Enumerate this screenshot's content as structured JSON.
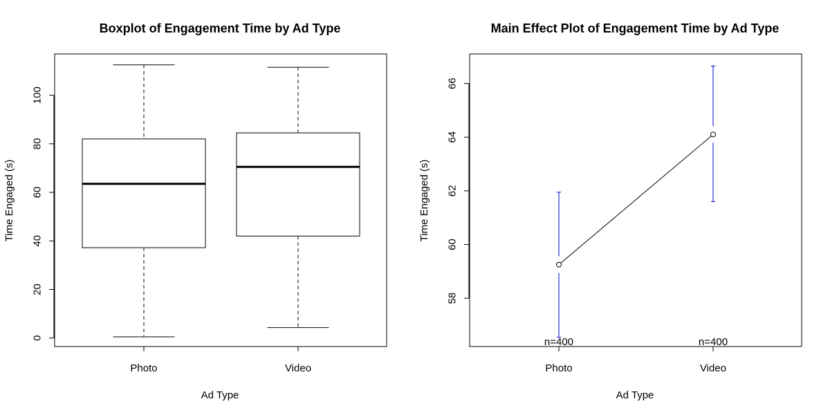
{
  "chart_data": [
    {
      "type": "boxplot",
      "title": "Boxplot of Engagement Time by Ad Type",
      "xlabel": "Ad Type",
      "ylabel": "Time Engaged (s)",
      "ylim": [
        -3.5,
        117
      ],
      "yticks": [
        "0",
        "20",
        "40",
        "60",
        "80",
        "100"
      ],
      "categories": [
        "Photo",
        "Video"
      ],
      "boxes": [
        {
          "category": "Photo",
          "min": 0.5,
          "q1": 37.2,
          "median": 63.5,
          "q3": 82,
          "max": 112.5
        },
        {
          "category": "Video",
          "min": 4.3,
          "q1": 42,
          "median": 70.5,
          "q3": 84.5,
          "max": 111.5
        }
      ],
      "grid": false
    },
    {
      "type": "line",
      "title": "Main Effect Plot of Engagement Time by Ad Type",
      "xlabel": "Ad Type",
      "ylabel": "Time Engaged (s)",
      "ylim": [
        56.2,
        67.1
      ],
      "yticks": [
        "58",
        "60",
        "62",
        "64",
        "66"
      ],
      "categories": [
        "Photo",
        "Video"
      ],
      "points": [
        {
          "category": "Photo",
          "mean": 59.25,
          "ci_low": 56.55,
          "ci_high": 61.95,
          "n_label": "n=400"
        },
        {
          "category": "Video",
          "mean": 64.1,
          "ci_low": 61.6,
          "ci_high": 66.65,
          "n_label": "n=400"
        }
      ],
      "errorbar_color": "#0000cc",
      "grid": false
    }
  ]
}
